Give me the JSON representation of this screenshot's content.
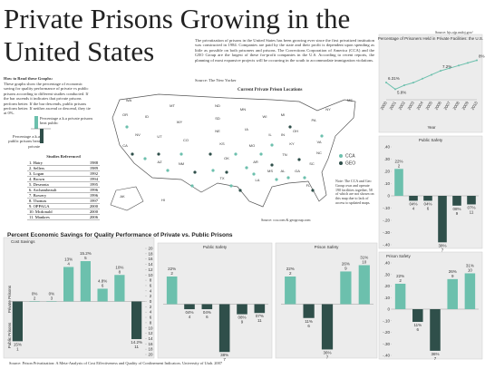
{
  "header": {
    "title_line1": "Private Prisons Growing in the",
    "title_line2": "United States",
    "source": "Source: bjs.ojp.usdoj.gov/"
  },
  "description": {
    "text": "The privatization of prisons in the United States has been growing ever since the first privatized institution was constructed in 1984. Companies are paid by the state and their profit is dependent upon spending as little as possible on both prisoners and prisons. The Corrections Corporation of America (CCA) and the GEO Group are the largest of these for-profit companies in the U.S. According to recent reports, the planning of most expansive projects will be occurring in the south to accommodate immigration violations.",
    "source": "Source: The New Yorker"
  },
  "how_to_read": {
    "title": "How to Read these Graphs:",
    "text": "These graphs show the percentage of economic saving for quality performance of private vs public prisons according to different studies conducted. If the bar ascends it indicates that private prisons perform better. If the bar descends, public prisons perform better. If neither ascend or descend, they tie at 0%.",
    "legend_private": "Percentage a.k.a private prisons beat public",
    "legend_public": "Percentage a.k.a public prisons beat private"
  },
  "studies": {
    "title": "Studies Referenced",
    "rows": [
      [
        "1. Hatry",
        "1988"
      ],
      [
        "2. Sellers",
        "1989"
      ],
      [
        "3. Logan",
        "1992"
      ],
      [
        "4. Brown",
        "1994"
      ],
      [
        "5. Deseonta",
        "1995"
      ],
      [
        "6. Archambeault",
        "1996"
      ],
      [
        "7. Bowery",
        "1996"
      ],
      [
        "8. Thomas",
        "1997"
      ],
      [
        "9. OPPAGA",
        "2000"
      ],
      [
        "10. Mcdonald",
        "2000"
      ],
      [
        "11. Mankres",
        "2006"
      ]
    ]
  },
  "map": {
    "title": "Current Private Prison Locations",
    "legend": [
      "CCA",
      "GEO"
    ],
    "legend_colors": [
      "#6cc0ad",
      "#2f4f4a"
    ],
    "note": "Note: The CCA and Geo Group own and operate 190 facilities together, 58 of which are not shown on this map due to lack of access to updated maps.",
    "source": "Source: cca.com & geogroup.com",
    "states": [
      "WA",
      "OR",
      "CA",
      "NV",
      "ID",
      "MT",
      "WY",
      "UT",
      "AZ",
      "CO",
      "NM",
      "ND",
      "SD",
      "NE",
      "KS",
      "OK",
      "TX",
      "MN",
      "IA",
      "MO",
      "AR",
      "LA",
      "WI",
      "IL",
      "MS",
      "AL",
      "GA",
      "FL",
      "TN",
      "KY",
      "IN",
      "OH",
      "MI",
      "PA",
      "NY",
      "VA",
      "NC",
      "SC",
      "ME",
      "AK",
      "HI"
    ]
  },
  "section_title": "Percent Economic Savings for Quality  Performance of Private vs. Public Prisons",
  "axis_private": "Private Prisons",
  "axis_public": "Public Prisons",
  "footer": "Source: Prison Privatization: A Meta-Analysis of Cost Effectiveness and Quality of Confinement Indicators. University of Utah. 2007",
  "chart_data": [
    {
      "type": "line",
      "title": "Percentage of Prisoners Held in Private Facilities: the U.S.",
      "xlabel": "Year",
      "x": [
        2000,
        2001,
        2002,
        2003,
        2004,
        2005,
        2006,
        2007,
        2008,
        2009,
        2010
      ],
      "values": [
        6.31,
        5.8,
        6.1,
        6.3,
        6.6,
        6.9,
        7.2,
        7.4,
        7.6,
        7.8,
        8
      ],
      "value_labels": [
        "6.31%",
        "5.8%",
        null,
        null,
        null,
        null,
        "7.2%",
        null,
        null,
        null,
        "8%"
      ],
      "xlim": [
        2000,
        2010
      ],
      "ylim": [
        5,
        9
      ],
      "color": "#6cc0ad"
    },
    {
      "type": "bar",
      "title": "Public Safety",
      "categories": [
        "2",
        "4",
        "6",
        "7",
        "9",
        "11"
      ],
      "values": [
        0.22,
        -0.04,
        -0.04,
        -0.38,
        -0.08,
        -0.07
      ],
      "value_labels": [
        "22%",
        "04%",
        "04%",
        "38%",
        "08%",
        "07%"
      ],
      "ylim": [
        -0.4,
        0.4
      ],
      "yticks": [
        {
          "value": 0.4,
          "label": ".40"
        },
        {
          "value": 0.3,
          "label": ".30"
        },
        {
          "value": 0.2,
          "label": ".20"
        },
        {
          "value": 0.1,
          "label": ".10"
        },
        0,
        {
          "value": -0.1,
          "label": "-.10"
        },
        {
          "value": -0.2,
          "label": "-.20"
        },
        {
          "value": -0.3,
          "label": "-.30"
        },
        {
          "value": -0.4,
          "label": "-.40"
        }
      ],
      "colors": {
        "positive": "#6cc0ad",
        "negative": "#2f4f4a"
      }
    },
    {
      "type": "bar",
      "title": "Prison Safety",
      "categories": [
        "2",
        "6",
        "7",
        "9",
        "10"
      ],
      "values": [
        0.22,
        -0.11,
        -0.36,
        0.26,
        0.31
      ],
      "value_labels": [
        "22%",
        "11%",
        "36%",
        "26%",
        "31%"
      ],
      "ylim": [
        -0.4,
        0.4
      ],
      "yticks": [
        {
          "value": 0.4,
          "label": ".40"
        },
        {
          "value": 0.3,
          "label": ".30"
        },
        {
          "value": 0.2,
          "label": ".20"
        },
        {
          "value": 0.1,
          "label": ".10"
        },
        0,
        {
          "value": -0.1,
          "label": "-.10"
        },
        {
          "value": -0.2,
          "label": "-.20"
        },
        {
          "value": -0.3,
          "label": "-.30"
        },
        {
          "value": -0.4,
          "label": "-.40"
        }
      ],
      "colors": {
        "positive": "#6cc0ad",
        "negative": "#2f4f4a"
      }
    },
    {
      "type": "bar",
      "title": "Cost Savings",
      "categories": [
        "1",
        "2",
        "3",
        "4",
        "5",
        "6",
        "8",
        "11"
      ],
      "values": [
        -15,
        0,
        0,
        13,
        15.2,
        4.8,
        10,
        -14.2
      ],
      "value_labels": [
        "15%",
        "0%",
        "0%",
        "13%",
        "15.2%",
        "4.8%",
        "10%",
        "14.2%"
      ],
      "ylim": [
        -20,
        20
      ],
      "yticks": [
        20,
        18,
        16,
        14,
        12,
        10,
        8,
        6,
        4,
        2,
        0,
        {
          "value": -2,
          "label": "2"
        },
        {
          "value": -4,
          "label": "4"
        },
        {
          "value": -6,
          "label": "6"
        },
        {
          "value": -8,
          "label": "8"
        },
        {
          "value": -10,
          "label": "10"
        },
        {
          "value": -12,
          "label": "12"
        },
        {
          "value": -14,
          "label": "14"
        },
        {
          "value": -16,
          "label": "16"
        },
        {
          "value": -18,
          "label": "18"
        },
        {
          "value": -20,
          "label": "20"
        }
      ],
      "colors": {
        "positive": "#6cc0ad",
        "negative": "#2f4f4a"
      }
    },
    {
      "type": "bar",
      "title": "Public Safety",
      "categories": [
        "2",
        "4",
        "6",
        "7",
        "9",
        "11"
      ],
      "values": [
        0.22,
        -0.04,
        -0.04,
        -0.38,
        -0.08,
        -0.07
      ],
      "value_labels": [
        "22%",
        "04%",
        "04%",
        "38%",
        "08%",
        "07%"
      ],
      "ylim": [
        -0.4,
        0.4
      ],
      "colors": {
        "positive": "#6cc0ad",
        "negative": "#2f4f4a"
      }
    },
    {
      "type": "bar",
      "title": "Prison Safety",
      "categories": [
        "2",
        "6",
        "7",
        "9",
        "10"
      ],
      "values": [
        0.22,
        -0.11,
        -0.36,
        0.26,
        0.31
      ],
      "value_labels": [
        "22%",
        "11%",
        "36%",
        "26%",
        "31%"
      ],
      "ylim": [
        -0.4,
        0.4
      ],
      "colors": {
        "positive": "#6cc0ad",
        "negative": "#2f4f4a"
      }
    }
  ]
}
